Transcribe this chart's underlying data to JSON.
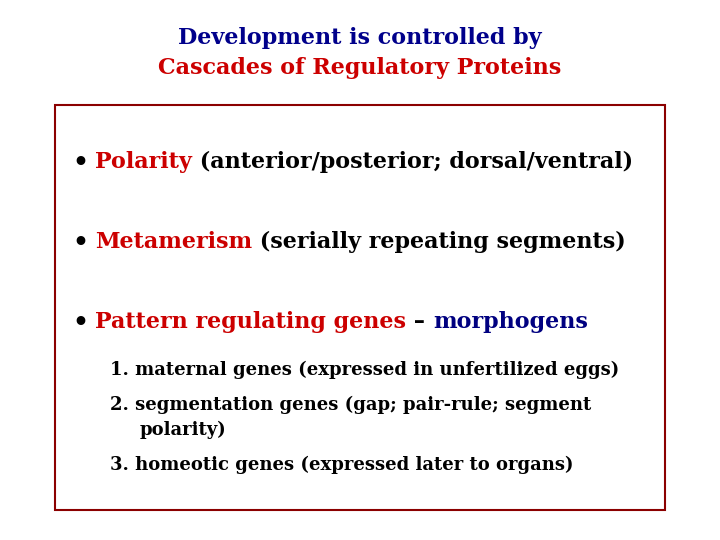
{
  "title_line1": "Development is controlled by",
  "title_line2": "Cascades of Regulatory Proteins",
  "title_line1_color": "#00008B",
  "title_line2_color": "#CC0000",
  "bg_color": "#FFFFFF",
  "box_edge_color": "#8B0000",
  "bullet1_red": "Polarity",
  "bullet1_black": " (anterior/posterior; dorsal/ventral)",
  "bullet2_red": "Metamerism",
  "bullet2_black": " (serially repeating segments)",
  "bullet3_red": "Pattern regulating genes",
  "bullet3_dash": " – ",
  "bullet3_blue": "morphogens",
  "sub1": "1. maternal genes (expressed in unfertilized eggs)",
  "sub2a": "2. segmentation genes (gap; pair-rule; segment",
  "sub2b": "polarity)",
  "sub3": "3. homeotic genes (expressed later to organs)",
  "red_color": "#CC0000",
  "blue_color": "#000080",
  "black_color": "#000000",
  "dark_blue": "#00008B",
  "title1_fontsize": 16,
  "title2_fontsize": 16,
  "bullet_fontsize": 16,
  "sub_fontsize": 13
}
